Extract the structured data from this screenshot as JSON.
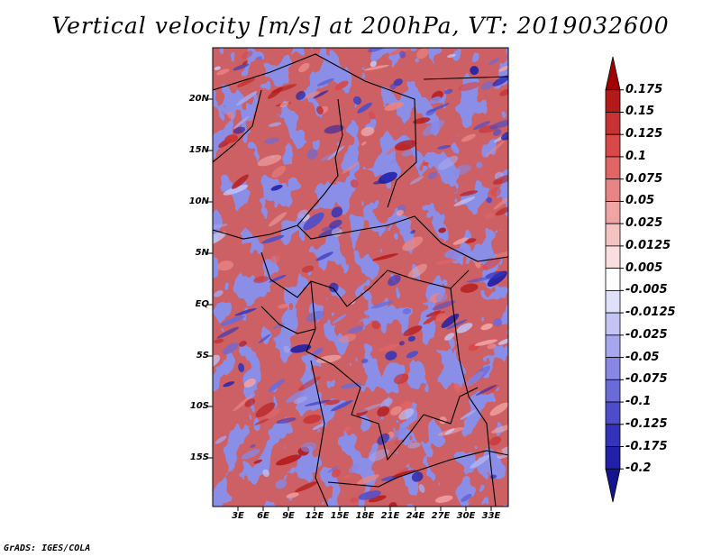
{
  "title": "Vertical velocity [m/s] at 200hPa, VT: 2019032600",
  "footer": "GrADS: IGES/COLA",
  "map": {
    "region": "Central Africa",
    "field": "Vertical velocity",
    "level": "200hPa",
    "valid_time": "2019032600",
    "lat_labels": [
      "20N",
      "15N",
      "10N",
      "5N",
      "EQ",
      "5S",
      "10S",
      "15S"
    ],
    "lon_labels": [
      "3E",
      "6E",
      "9E",
      "12E",
      "15E",
      "18E",
      "21E",
      "24E",
      "27E",
      "30E",
      "33E"
    ]
  },
  "colorbar": {
    "labels": [
      "0.175",
      "0.15",
      "0.125",
      "0.1",
      "0.075",
      "0.05",
      "0.025",
      "0.0125",
      "0.005",
      "-0.005",
      "-0.0125",
      "-0.025",
      "-0.05",
      "-0.075",
      "-0.1",
      "-0.125",
      "-0.175",
      "-0.2"
    ],
    "colors": [
      "#a00000",
      "#b51a1a",
      "#c93232",
      "#d84848",
      "#e26565",
      "#e98484",
      "#f0a3a3",
      "#f5c2c2",
      "#fadede",
      "#ffffff",
      "#e0e0fa",
      "#c4c4f4",
      "#a6a6ee",
      "#8888e4",
      "#6a6ad8",
      "#4d4dcb",
      "#3434ba",
      "#2020a8",
      "#14148e"
    ]
  }
}
